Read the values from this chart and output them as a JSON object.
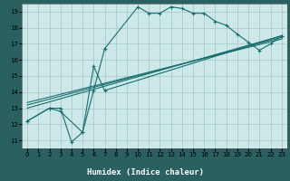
{
  "xlabel": "Humidex (Indice chaleur)",
  "bg_color": "#cce8e8",
  "grid_color": "#aacccc",
  "line_color": "#1a6e6e",
  "xlabel_bg": "#2a6060",
  "xlabel_fg": "#ffffff",
  "xlim": [
    -0.5,
    23.5
  ],
  "ylim": [
    10.5,
    19.5
  ],
  "xticks": [
    0,
    1,
    2,
    3,
    4,
    5,
    6,
    7,
    8,
    9,
    10,
    11,
    12,
    13,
    14,
    15,
    16,
    17,
    18,
    19,
    20,
    21,
    22,
    23
  ],
  "yticks": [
    11,
    12,
    13,
    14,
    15,
    16,
    17,
    18,
    19
  ],
  "lines": [
    {
      "x": [
        0,
        2,
        3,
        4,
        5,
        6,
        7,
        10,
        11,
        12,
        13,
        14,
        15,
        16,
        17,
        18,
        19,
        20,
        21,
        22,
        23
      ],
      "y": [
        12.2,
        13.0,
        13.0,
        10.9,
        11.5,
        14.1,
        16.7,
        19.3,
        18.9,
        18.9,
        19.3,
        19.2,
        18.9,
        18.9,
        18.4,
        18.15,
        17.6,
        17.1,
        16.6,
        17.0,
        17.5
      ],
      "marker": true
    },
    {
      "x": [
        0,
        2,
        3,
        5,
        6,
        7,
        23
      ],
      "y": [
        12.2,
        13.0,
        12.8,
        11.5,
        15.6,
        14.1,
        17.5
      ],
      "marker": true
    },
    {
      "x": [
        0,
        23
      ],
      "y": [
        13.0,
        17.5
      ],
      "marker": false
    },
    {
      "x": [
        0,
        23
      ],
      "y": [
        13.2,
        17.4
      ],
      "marker": false
    },
    {
      "x": [
        0,
        23
      ],
      "y": [
        13.35,
        17.3
      ],
      "marker": false
    }
  ]
}
